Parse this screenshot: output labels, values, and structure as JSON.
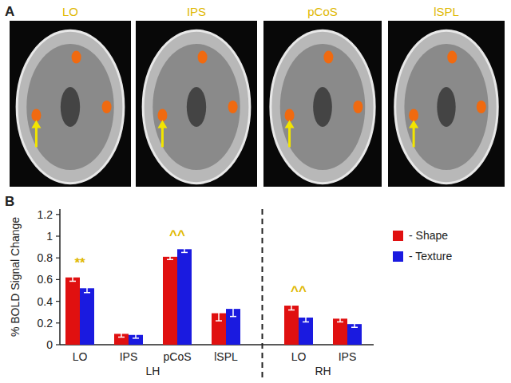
{
  "figure": {
    "panel_a": {
      "label": "A",
      "regions": [
        "LO",
        "IPS",
        "pCoS",
        "lSPL"
      ]
    }
  },
  "chart_data": {
    "type": "bar",
    "panel_label": "B",
    "y_label": "% BOLD Signal Change",
    "categories": [
      "LO",
      "IPS",
      "pCoS",
      "lSPL",
      "LO",
      "IPS"
    ],
    "groups": [
      {
        "label": "LH",
        "count": 4
      },
      {
        "label": "RH",
        "count": 2
      }
    ],
    "series": [
      {
        "name": "- Shape",
        "color": "#e01010",
        "values": [
          0.62,
          0.1,
          0.81,
          0.29,
          0.36,
          0.24
        ],
        "errors": [
          0.035,
          0.03,
          0.025,
          0.07,
          0.04,
          0.03
        ]
      },
      {
        "name": "- Texture",
        "color": "#1a1ae0",
        "values": [
          0.52,
          0.09,
          0.88,
          0.33,
          0.25,
          0.19
        ],
        "errors": [
          0.04,
          0.03,
          0.03,
          0.07,
          0.04,
          0.03
        ]
      }
    ],
    "annotations": [
      {
        "text": "**",
        "category": 0
      },
      {
        "text": "^^",
        "category": 2
      },
      {
        "text": "^^",
        "category": 4
      }
    ],
    "ylim": [
      0,
      1.25
    ],
    "yticks": [
      0,
      0.2,
      0.4,
      0.6,
      0.8,
      1,
      1.2
    ],
    "grid": false,
    "legend": "right"
  }
}
